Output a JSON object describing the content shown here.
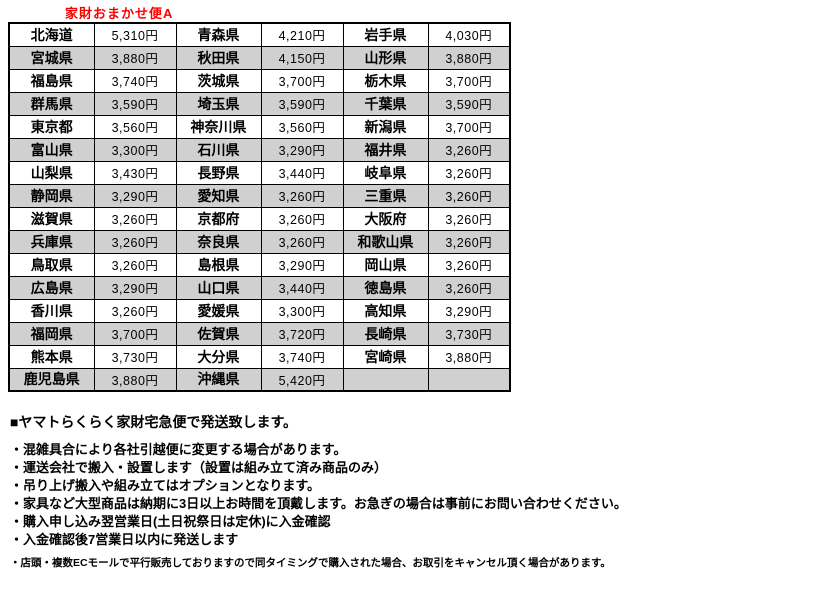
{
  "title": "家財おまかせ便A",
  "colors": {
    "title_red": "#ff0000",
    "row_gray": "#d0d0d0",
    "border_black": "#000000"
  },
  "fee_table": {
    "columns": [
      "prefecture",
      "price",
      "prefecture",
      "price",
      "prefecture",
      "price"
    ],
    "rows": [
      {
        "shaded": false,
        "cells": [
          {
            "pref": "北海道",
            "price": "5,310円"
          },
          {
            "pref": "青森県",
            "price": "4,210円"
          },
          {
            "pref": "岩手県",
            "price": "4,030円"
          }
        ]
      },
      {
        "shaded": true,
        "cells": [
          {
            "pref": "宮城県",
            "price": "3,880円"
          },
          {
            "pref": "秋田県",
            "price": "4,150円"
          },
          {
            "pref": "山形県",
            "price": "3,880円"
          }
        ]
      },
      {
        "shaded": false,
        "cells": [
          {
            "pref": "福島県",
            "price": "3,740円"
          },
          {
            "pref": "茨城県",
            "price": "3,700円"
          },
          {
            "pref": "栃木県",
            "price": "3,700円"
          }
        ]
      },
      {
        "shaded": true,
        "cells": [
          {
            "pref": "群馬県",
            "price": "3,590円"
          },
          {
            "pref": "埼玉県",
            "price": "3,590円"
          },
          {
            "pref": "千葉県",
            "price": "3,590円"
          }
        ]
      },
      {
        "shaded": false,
        "cells": [
          {
            "pref": "東京都",
            "price": "3,560円"
          },
          {
            "pref": "神奈川県",
            "price": "3,560円"
          },
          {
            "pref": "新潟県",
            "price": "3,700円"
          }
        ]
      },
      {
        "shaded": true,
        "cells": [
          {
            "pref": "富山県",
            "price": "3,300円"
          },
          {
            "pref": "石川県",
            "price": "3,290円"
          },
          {
            "pref": "福井県",
            "price": "3,260円"
          }
        ]
      },
      {
        "shaded": false,
        "cells": [
          {
            "pref": "山梨県",
            "price": "3,430円"
          },
          {
            "pref": "長野県",
            "price": "3,440円"
          },
          {
            "pref": "岐阜県",
            "price": "3,260円"
          }
        ]
      },
      {
        "shaded": true,
        "cells": [
          {
            "pref": "静岡県",
            "price": "3,290円"
          },
          {
            "pref": "愛知県",
            "price": "3,260円"
          },
          {
            "pref": "三重県",
            "price": "3,260円"
          }
        ]
      },
      {
        "shaded": false,
        "cells": [
          {
            "pref": "滋賀県",
            "price": "3,260円"
          },
          {
            "pref": "京都府",
            "price": "3,260円"
          },
          {
            "pref": "大阪府",
            "price": "3,260円"
          }
        ]
      },
      {
        "shaded": true,
        "cells": [
          {
            "pref": "兵庫県",
            "price": "3,260円"
          },
          {
            "pref": "奈良県",
            "price": "3,260円"
          },
          {
            "pref": "和歌山県",
            "price": "3,260円"
          }
        ]
      },
      {
        "shaded": false,
        "cells": [
          {
            "pref": "鳥取県",
            "price": "3,260円"
          },
          {
            "pref": "島根県",
            "price": "3,290円"
          },
          {
            "pref": "岡山県",
            "price": "3,260円"
          }
        ]
      },
      {
        "shaded": true,
        "cells": [
          {
            "pref": "広島県",
            "price": "3,290円"
          },
          {
            "pref": "山口県",
            "price": "3,440円"
          },
          {
            "pref": "徳島県",
            "price": "3,260円"
          }
        ]
      },
      {
        "shaded": false,
        "cells": [
          {
            "pref": "香川県",
            "price": "3,260円"
          },
          {
            "pref": "愛媛県",
            "price": "3,300円"
          },
          {
            "pref": "高知県",
            "price": "3,290円"
          }
        ]
      },
      {
        "shaded": true,
        "cells": [
          {
            "pref": "福岡県",
            "price": "3,700円"
          },
          {
            "pref": "佐賀県",
            "price": "3,720円"
          },
          {
            "pref": "長崎県",
            "price": "3,730円"
          }
        ]
      },
      {
        "shaded": false,
        "cells": [
          {
            "pref": "熊本県",
            "price": "3,730円"
          },
          {
            "pref": "大分県",
            "price": "3,740円"
          },
          {
            "pref": "宮崎県",
            "price": "3,880円"
          }
        ]
      },
      {
        "shaded": true,
        "cells": [
          {
            "pref": "鹿児島県",
            "price": "3,880円"
          },
          {
            "pref": "沖縄県",
            "price": "5,420円"
          },
          {
            "pref": "",
            "price": ""
          }
        ]
      }
    ]
  },
  "notes": {
    "heading": "■ヤマトらくらく家財宅急便で発送致します。",
    "bullets": [
      "・混雑具合により各社引越便に変更する場合があります。",
      "・運送会社で搬入・設置します（設置は組み立て済み商品のみ）",
      "・吊り上げ搬入や組み立てはオプションとなります。",
      "・家具など大型商品は納期に3日以上お時間を頂戴します。お急ぎの場合は事前にお問い合わせください。",
      "・購入申し込み翌営業日(土日祝祭日は定休)に入金確認",
      "・入金確認後7営業日以内に発送します"
    ],
    "footnote": "・店頭・複数ECモールで平行販売しておりますので同タイミングで購入された場合、お取引をキャンセル頂く場合があります。"
  }
}
